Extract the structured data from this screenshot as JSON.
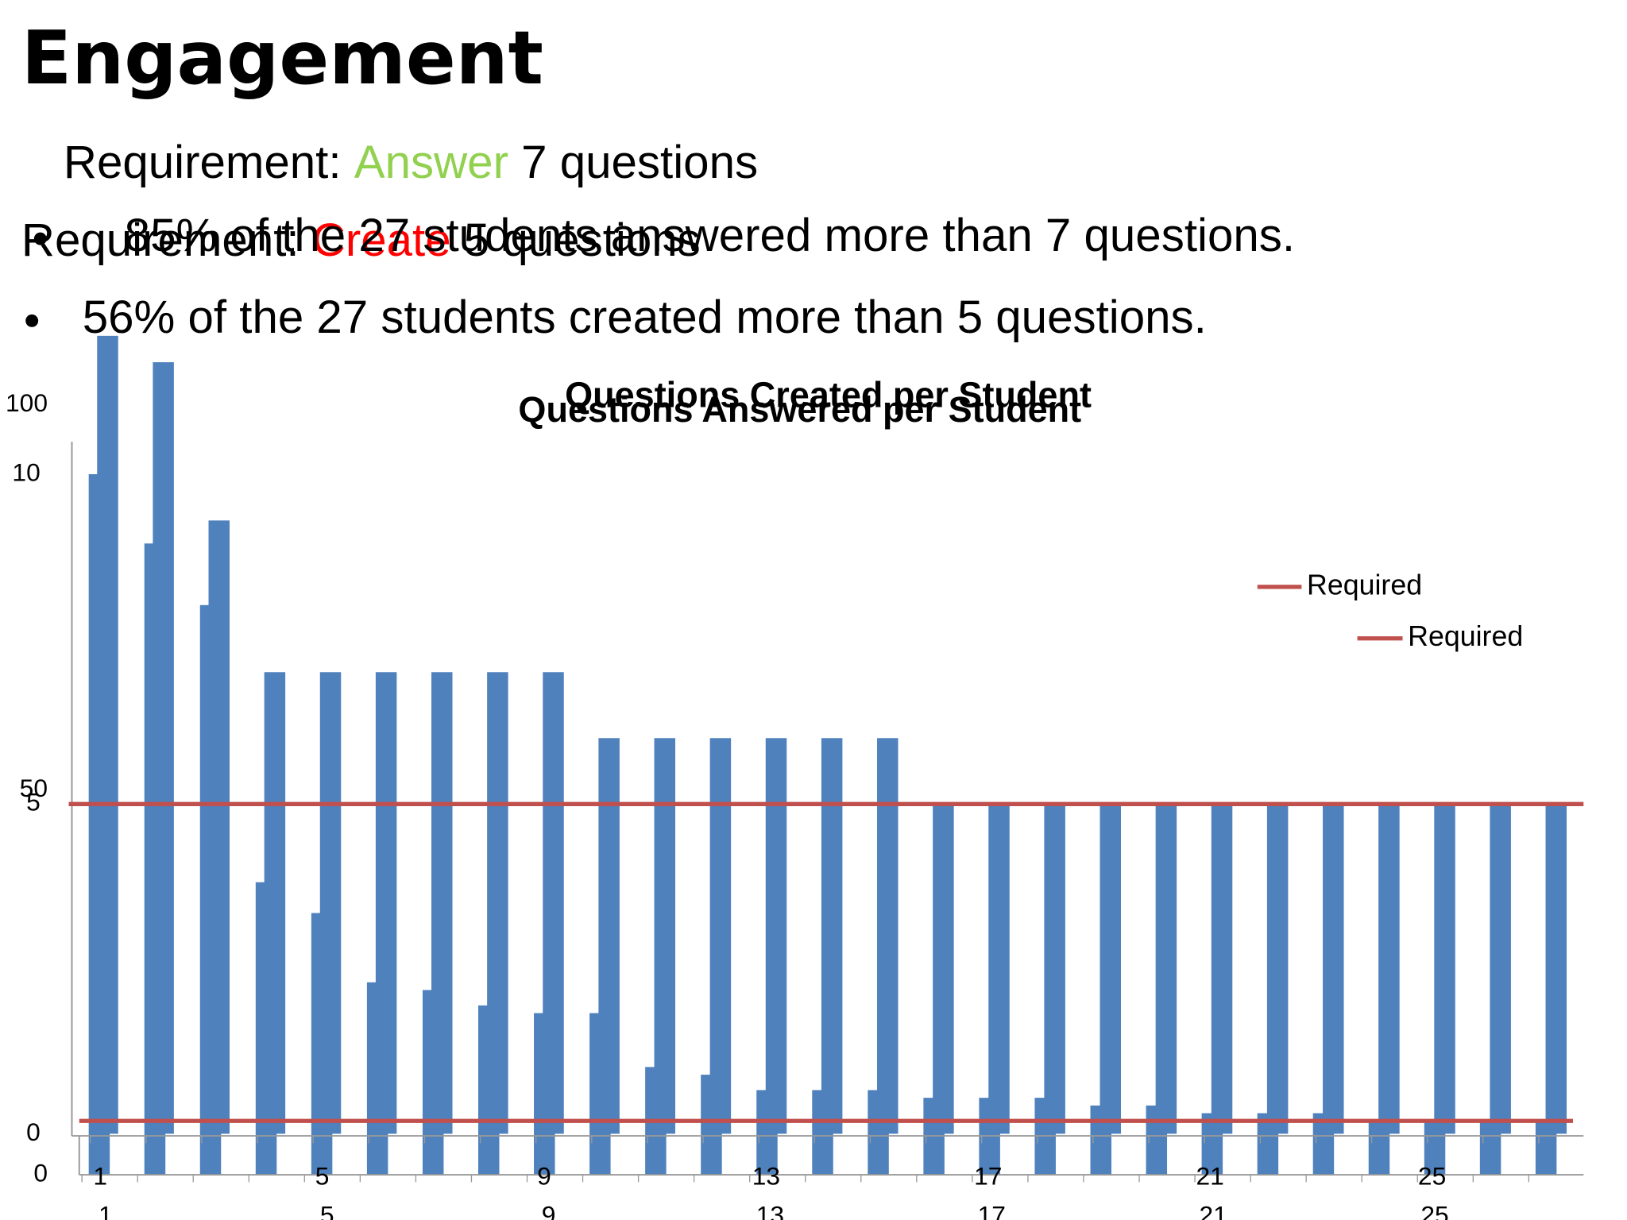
{
  "slide": {
    "title": "Engagement",
    "requirements": [
      {
        "prefix": "Requirement: ",
        "verb": "Answer",
        "suffix": " 7 questions",
        "color": "#92d050"
      },
      {
        "prefix": "Requirement: ",
        "verb": "Create",
        "suffix": " 5 questions",
        "color": "#ff0000"
      }
    ],
    "bullets": [
      "85% of the 27 students answered more than 7 questions.",
      "56% of the 27 students created more than 5 questions."
    ]
  },
  "chart_data": [
    {
      "type": "bar",
      "title": "Questions Answered per Student",
      "categories": [
        "1",
        null,
        null,
        null,
        "5",
        null,
        null,
        null,
        "9",
        null,
        null,
        null,
        "13",
        null,
        null,
        null,
        "17",
        null,
        null,
        null,
        "21",
        null,
        null,
        null,
        "25",
        null,
        null
      ],
      "values": [
        91,
        82,
        74,
        38,
        34,
        25,
        24,
        22,
        21,
        21,
        14,
        13,
        11,
        11,
        11,
        10,
        10,
        10,
        9,
        9,
        8,
        8,
        8,
        7,
        7,
        7,
        7
      ],
      "color": "#4f81bd",
      "required": {
        "name": "Required",
        "value": 7,
        "color": "#c0504d"
      },
      "ylim": [
        0,
        100
      ],
      "yticks": [
        0,
        50,
        100
      ]
    },
    {
      "type": "bar",
      "title": "Questions Created per Student",
      "categories": [
        "1",
        null,
        null,
        null,
        "5",
        null,
        null,
        null,
        "9",
        null,
        null,
        null,
        "13",
        null,
        null,
        null,
        "17",
        null,
        null,
        null,
        "21",
        null,
        null,
        null,
        "25",
        null,
        null
      ],
      "values": [
        12.1,
        11.7,
        9.3,
        7,
        7,
        7,
        7,
        7,
        7,
        6,
        6,
        6,
        6,
        6,
        6,
        5,
        5,
        5,
        5,
        5,
        5,
        5,
        5,
        5,
        5,
        5,
        5
      ],
      "color": "#4f81bd",
      "required": {
        "name": "Required",
        "value": 5,
        "color": "#c0504d"
      },
      "ylim": [
        0,
        10
      ],
      "yticks": [
        0,
        5,
        10
      ]
    }
  ]
}
